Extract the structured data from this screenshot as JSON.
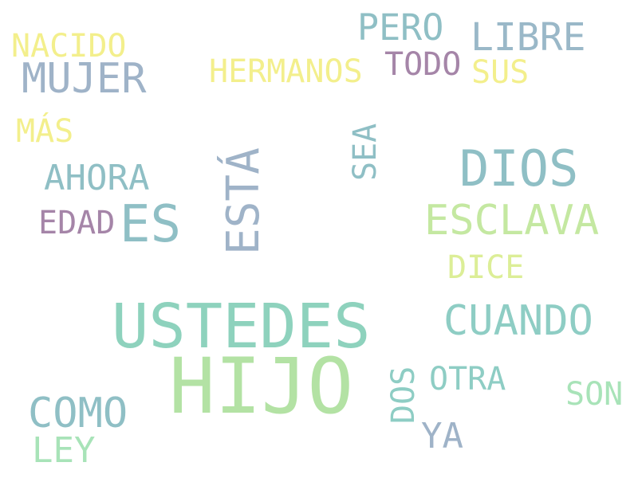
{
  "cloud": {
    "words": [
      {
        "text": "HIJO",
        "color": "#b3e2a4"
      },
      {
        "text": "USTEDES",
        "color": "#8ed2bd"
      },
      {
        "text": "DIOS",
        "color": "#8fbfc5"
      },
      {
        "text": "ESTÁ",
        "color": "#9fb3c8"
      },
      {
        "text": "ES",
        "color": "#8fbfc5"
      },
      {
        "text": "ESCLAVA",
        "color": "#c4e8a1"
      },
      {
        "text": "CUANDO",
        "color": "#8ecdc4"
      },
      {
        "text": "MUJER",
        "color": "#9fb3c8"
      },
      {
        "text": "COMO",
        "color": "#8fbfc5"
      },
      {
        "text": "LIBRE",
        "color": "#9ab8c8"
      },
      {
        "text": "PERO",
        "color": "#8fbfc5"
      },
      {
        "text": "AHORA",
        "color": "#8fbfc5"
      },
      {
        "text": "NACIDO",
        "color": "#f3ef8c"
      },
      {
        "text": "HERMANOS",
        "color": "#f3ef8c"
      },
      {
        "text": "TODO",
        "color": "#a585a8"
      },
      {
        "text": "SUS",
        "color": "#f3ef8c"
      },
      {
        "text": "MÁS",
        "color": "#f3ef8c"
      },
      {
        "text": "SEA",
        "color": "#8fbfc5"
      },
      {
        "text": "EDAD",
        "color": "#a585a8"
      },
      {
        "text": "DICE",
        "color": "#dcee97"
      },
      {
        "text": "OTRA",
        "color": "#8ecdc4"
      },
      {
        "text": "SON",
        "color": "#a8e3b8"
      },
      {
        "text": "DOS",
        "color": "#8ecdc4"
      },
      {
        "text": "YA",
        "color": "#9fb3c8"
      },
      {
        "text": "LEY",
        "color": "#a8e3b8"
      }
    ]
  }
}
